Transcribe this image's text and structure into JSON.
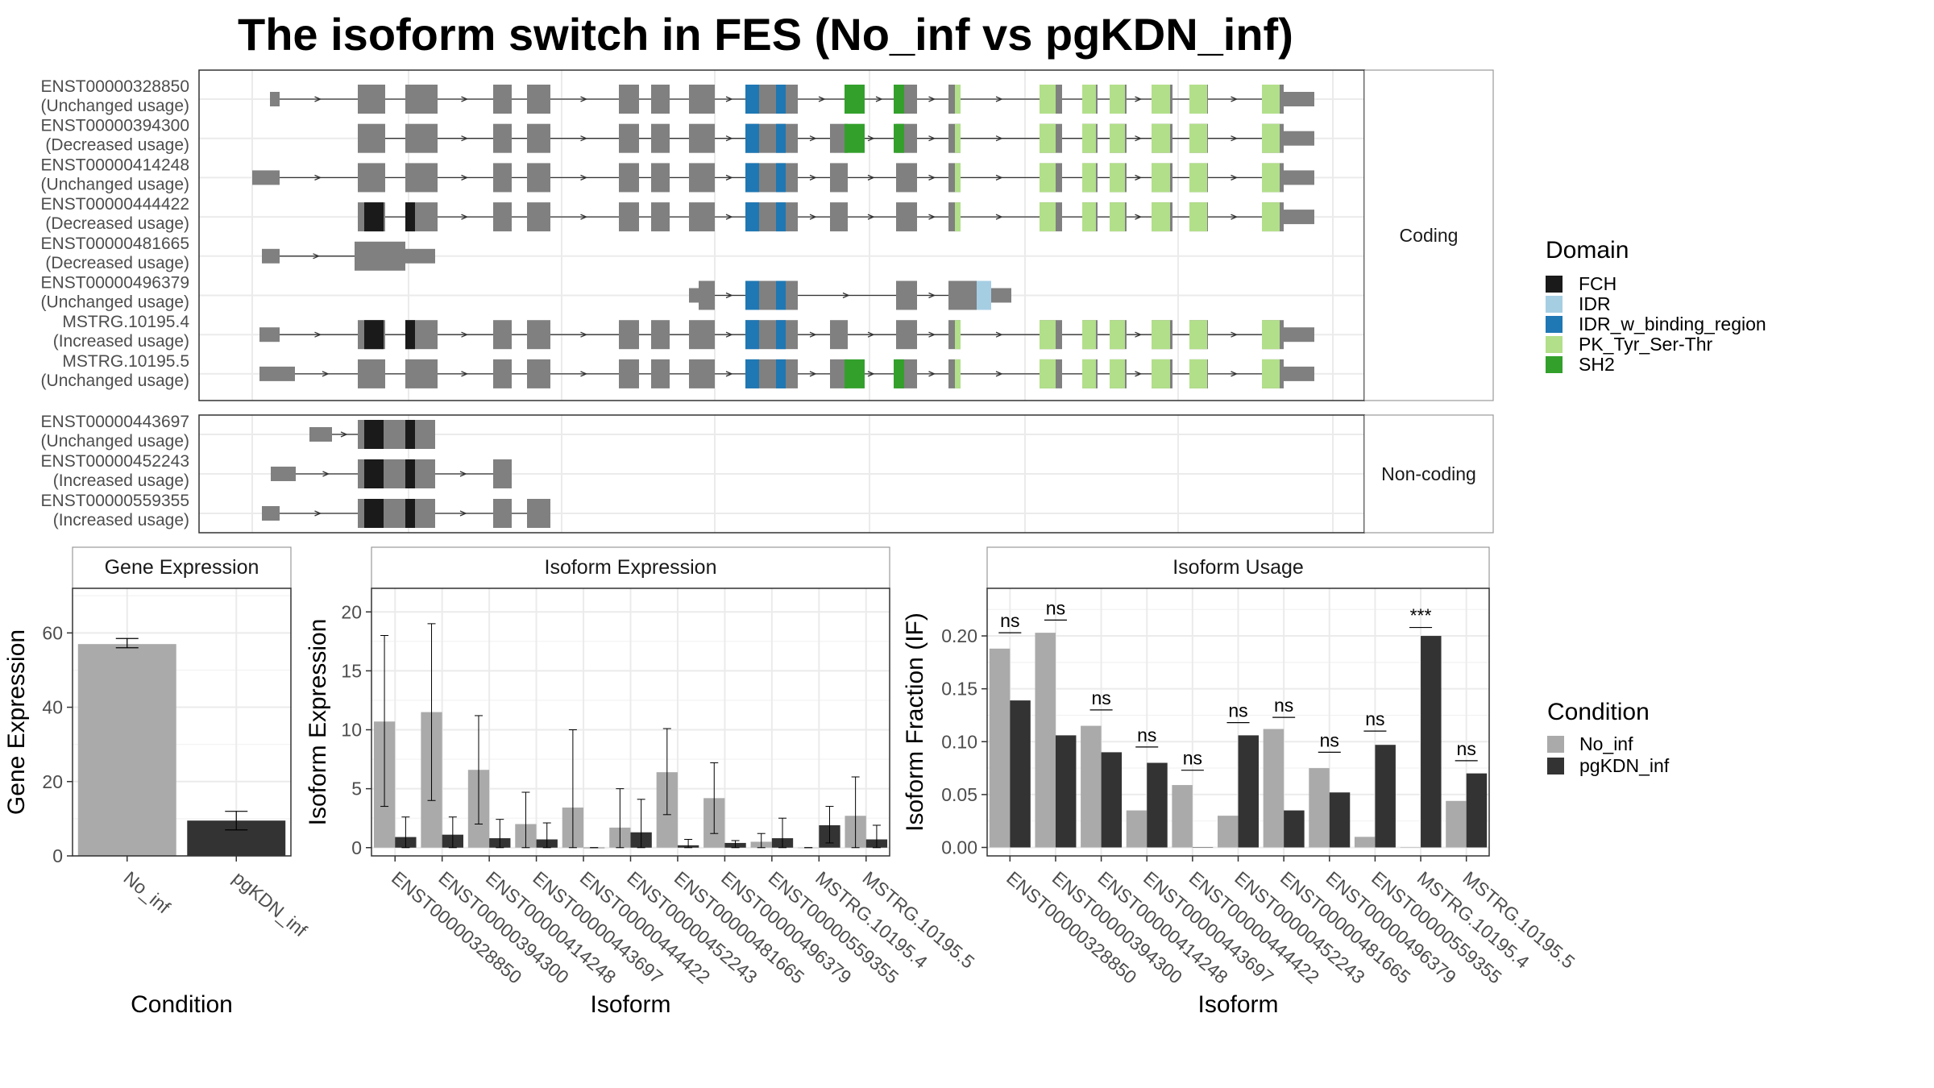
{
  "title": "The isoform switch in FES (No_inf vs pgKDN_inf)",
  "colors": {
    "no_inf": "#aaaaaa",
    "pgkdn_inf": "#333333",
    "exon": "#808080",
    "FCH": "#1a1a1a",
    "IDR": "#a6cee3",
    "IDR_w_binding_region": "#1f78b4",
    "PK_Tyr_Ser-Thr": "#b2df8a",
    "SH2": "#33a02c"
  },
  "isoform_plot": {
    "coding_label": "Coding",
    "noncoding_label": "Non-coding",
    "coding": [
      {
        "id": "ENST00000328850",
        "status": "(Unchanged usage)"
      },
      {
        "id": "ENST00000394300",
        "status": "(Decreased usage)"
      },
      {
        "id": "ENST00000414248",
        "status": "(Unchanged usage)"
      },
      {
        "id": "ENST00000444422",
        "status": "(Decreased usage)"
      },
      {
        "id": "ENST00000481665",
        "status": "(Decreased usage)"
      },
      {
        "id": "ENST00000496379",
        "status": "(Unchanged usage)"
      },
      {
        "id": "MSTRG.10195.4",
        "status": "(Increased usage)"
      },
      {
        "id": "MSTRG.10195.5",
        "status": "(Unchanged usage)"
      }
    ],
    "noncoding": [
      {
        "id": "ENST00000443697",
        "status": "(Unchanged usage)"
      },
      {
        "id": "ENST00000452243",
        "status": "(Increased usage)"
      },
      {
        "id": "ENST00000559355",
        "status": "(Increased usage)"
      }
    ]
  },
  "legend_domain": {
    "title": "Domain",
    "items": [
      "FCH",
      "IDR",
      "IDR_w_binding_region",
      "PK_Tyr_Ser-Thr",
      "SH2"
    ]
  },
  "legend_condition": {
    "title": "Condition",
    "items": [
      "No_inf",
      "pgKDN_inf"
    ]
  },
  "chart_data": [
    {
      "type": "bar",
      "title": "Gene Expression",
      "xlabel": "Condition",
      "ylabel": "Gene Expression",
      "categories": [
        "No_inf",
        "pgKDN_inf"
      ],
      "values": [
        57,
        9.5
      ],
      "error": [
        [
          56,
          58.5
        ],
        [
          7,
          12
        ]
      ],
      "ylim": [
        0,
        72
      ],
      "yticks": [
        0,
        20,
        40,
        60
      ]
    },
    {
      "type": "bar",
      "title": "Isoform Expression",
      "xlabel": "Isoform",
      "ylabel": "Isoform Expression",
      "ylim": [
        -0.7,
        22
      ],
      "yticks": [
        0,
        5,
        10,
        15,
        20
      ],
      "categories": [
        "ENST00000328850",
        "ENST00000394300",
        "ENST00000414248",
        "ENST00000443697",
        "ENST00000444422",
        "ENST00000452243",
        "ENST00000481665",
        "ENST00000496379",
        "ENST00000559355",
        "MSTRG.10195.4",
        "MSTRG.10195.5"
      ],
      "series": [
        {
          "name": "No_inf",
          "values": [
            10.7,
            11.5,
            6.6,
            2.0,
            3.4,
            1.7,
            6.4,
            4.2,
            0.5,
            0.0,
            2.7
          ],
          "error": [
            [
              3.5,
              18
            ],
            [
              4,
              19
            ],
            [
              2,
              11.2
            ],
            [
              0,
              4.7
            ],
            [
              0,
              10
            ],
            [
              0,
              5
            ],
            [
              2.8,
              10.1
            ],
            [
              1.2,
              7.2
            ],
            [
              0,
              1.2
            ],
            [
              0,
              0
            ],
            [
              0,
              6
            ]
          ]
        },
        {
          "name": "pgKDN_inf",
          "values": [
            0.9,
            1.1,
            0.8,
            0.7,
            0.0,
            1.3,
            0.2,
            0.4,
            0.8,
            1.9,
            0.7
          ],
          "error": [
            [
              0,
              2.6
            ],
            [
              0,
              2.6
            ],
            [
              0,
              2.4
            ],
            [
              0,
              2.1
            ],
            [
              0,
              0
            ],
            [
              0,
              4.1
            ],
            [
              0,
              0.7
            ],
            [
              0,
              0.6
            ],
            [
              0,
              2.5
            ],
            [
              0.4,
              3.5
            ],
            [
              0,
              1.9
            ]
          ]
        }
      ]
    },
    {
      "type": "bar",
      "title": "Isoform Usage",
      "xlabel": "Isoform",
      "ylabel": "Isoform Fraction (IF)",
      "ylim": [
        -0.008,
        0.245
      ],
      "yticks": [
        0.0,
        0.05,
        0.1,
        0.15,
        0.2
      ],
      "ytick_labels": [
        "0.00",
        "0.05",
        "0.10",
        "0.15",
        "0.20"
      ],
      "categories": [
        "ENST00000328850",
        "ENST00000394300",
        "ENST00000414248",
        "ENST00000443697",
        "ENST00000444422",
        "ENST00000452243",
        "ENST00000481665",
        "ENST00000496379",
        "ENST00000559355",
        "MSTRG.10195.4",
        "MSTRG.10195.5"
      ],
      "series": [
        {
          "name": "No_inf",
          "values": [
            0.188,
            0.203,
            0.115,
            0.035,
            0.059,
            0.03,
            0.112,
            0.075,
            0.01,
            0.0,
            0.044
          ]
        },
        {
          "name": "pgKDN_inf",
          "values": [
            0.139,
            0.106,
            0.09,
            0.08,
            0.0,
            0.106,
            0.035,
            0.052,
            0.097,
            0.2,
            0.07
          ]
        }
      ],
      "annotations": [
        "ns",
        "ns",
        "ns",
        "ns",
        "ns",
        "ns",
        "ns",
        "ns",
        "ns",
        "***",
        "ns"
      ],
      "annotation_y": [
        0.203,
        0.215,
        0.13,
        0.095,
        0.073,
        0.118,
        0.123,
        0.09,
        0.11,
        0.208,
        0.082
      ]
    }
  ]
}
